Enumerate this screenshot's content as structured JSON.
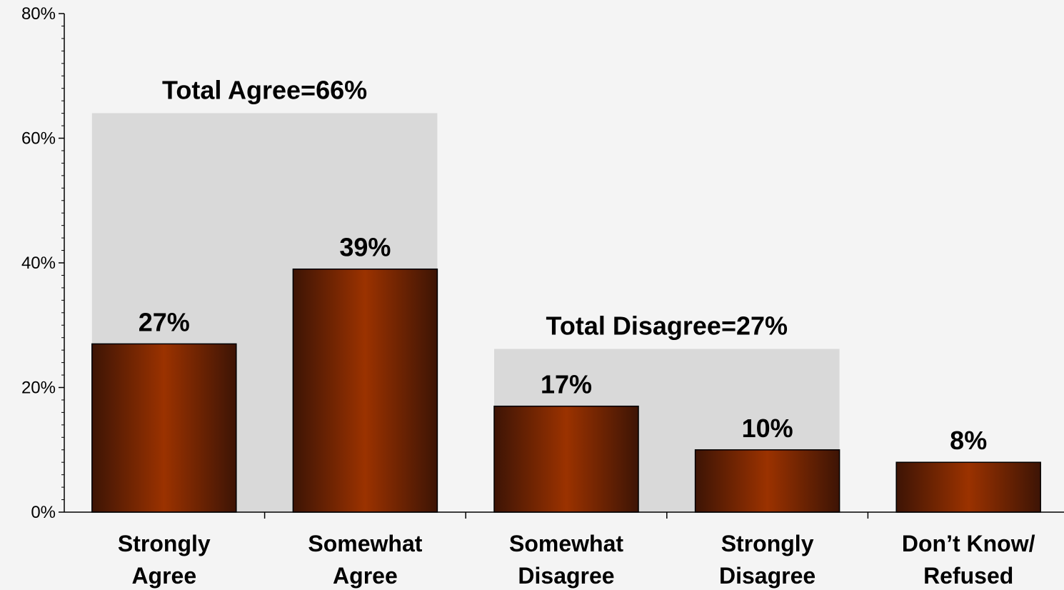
{
  "chart_data": {
    "type": "bar",
    "categories": [
      [
        "Strongly",
        "Agree"
      ],
      [
        "Somewhat",
        "Agree"
      ],
      [
        "Somewhat",
        "Disagree"
      ],
      [
        "Strongly",
        "Disagree"
      ],
      [
        "Don’t Know/",
        "Refused"
      ]
    ],
    "values": [
      27,
      39,
      17,
      10,
      8
    ],
    "value_labels": [
      "27%",
      "39%",
      "17%",
      "10%",
      "8%"
    ],
    "ylim": [
      0,
      80
    ],
    "yticks": [
      0,
      20,
      40,
      60,
      80
    ],
    "ytick_labels": [
      "0%",
      "20%",
      "40%",
      "60%",
      "80%"
    ],
    "groups": [
      {
        "label": "Total Agree=66%",
        "categories": [
          0,
          1
        ],
        "value": 66
      },
      {
        "label": "Total Disagree=27%",
        "categories": [
          2,
          3
        ],
        "value": 27
      }
    ],
    "colors": {
      "bar_center": "#9b3200",
      "bar_edge": "#3d1405",
      "group_band": "#d9d9d9",
      "background": "#f4f4f4"
    },
    "grid": false,
    "legend": "none"
  }
}
